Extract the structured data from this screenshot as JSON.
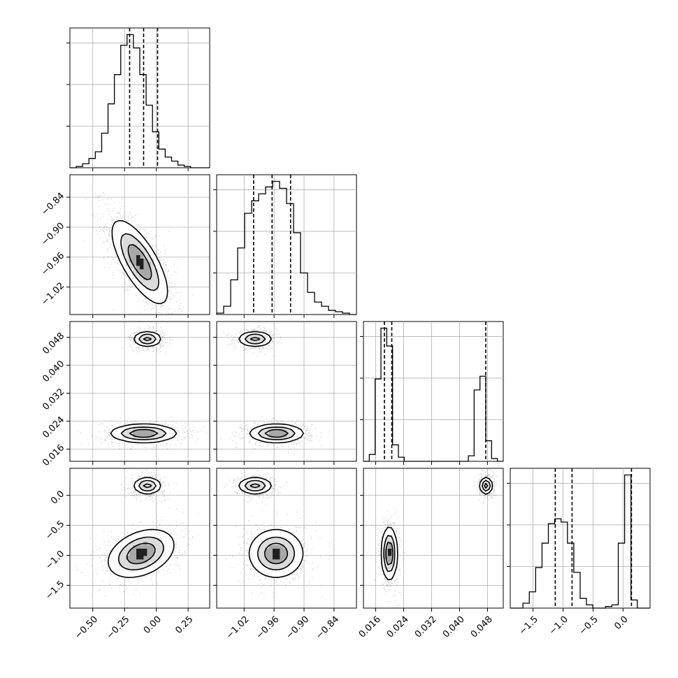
{
  "chart_data": {
    "type": "corner",
    "title": "",
    "grid": true,
    "variables": [
      {
        "range": [
          -0.68,
          0.42
        ],
        "ticks": [
          -0.5,
          -0.25,
          0.0,
          0.25
        ],
        "tick_labels": [
          "−0.50",
          "−0.25",
          "0.00",
          "0.25"
        ],
        "quantiles": [
          -0.21,
          -0.1,
          0.01
        ]
      },
      {
        "range": [
          -1.075,
          -0.795
        ],
        "ticks": [
          -1.02,
          -0.96,
          -0.9,
          -0.84
        ],
        "tick_labels": [
          "−1.02",
          "−0.96",
          "−0.90",
          "−0.84"
        ],
        "quantiles": [
          -1.001,
          -0.964,
          -0.927
        ]
      },
      {
        "range": [
          0.0125,
          0.0525
        ],
        "ticks": [
          0.016,
          0.024,
          0.032,
          0.04,
          0.048
        ],
        "tick_labels": [
          "0.016",
          "0.024",
          "0.032",
          "0.040",
          "0.048"
        ],
        "quantiles": [
          0.0185,
          0.0206,
          0.0475
        ]
      },
      {
        "range": [
          -1.88,
          0.45
        ],
        "ticks": [
          -1.5,
          -1.0,
          -0.5,
          0.0
        ],
        "tick_labels": [
          "−1.5",
          "−1.0",
          "−0.5",
          "0.0"
        ],
        "quantiles": [
          -1.13,
          -0.85,
          0.14
        ]
      }
    ],
    "diagonal_histograms": [
      {
        "bins": [
          -0.68,
          0.42
        ],
        "counts": [
          0,
          1,
          3,
          7,
          12,
          26,
          48,
          70,
          92,
          100,
          90,
          70,
          47,
          27,
          14,
          8,
          5,
          2,
          1,
          0,
          0,
          0
        ]
      },
      {
        "bins": [
          -1.075,
          -0.795
        ],
        "counts": [
          1,
          6,
          25,
          48,
          73,
          82,
          87,
          92,
          96,
          91,
          80,
          59,
          30,
          16,
          9,
          6,
          3,
          2,
          1,
          0
        ]
      },
      {
        "bins": [
          0.0125,
          0.0525
        ],
        "counts": [
          0,
          5,
          60,
          97,
          84,
          12,
          3,
          0,
          0,
          0,
          0,
          0,
          0,
          0,
          0,
          0,
          0,
          0,
          4,
          52,
          62,
          15,
          2,
          0
        ]
      },
      {
        "bins": [
          -1.88,
          0.45
        ],
        "counts": [
          0,
          0,
          3,
          10,
          25,
          40,
          52,
          55,
          53,
          40,
          22,
          6,
          2,
          0,
          0,
          1,
          2,
          40,
          82,
          5,
          0,
          0
        ]
      }
    ],
    "pair_densities": [
      {
        "x_var": 0,
        "y_var": 1,
        "clusters": [
          {
            "cx": -0.13,
            "cy": -0.97,
            "sx": 0.11,
            "sy": 0.042,
            "rho": -0.72,
            "weight": 1.0
          }
        ]
      },
      {
        "x_var": 0,
        "y_var": 2,
        "clusters": [
          {
            "cx": -0.07,
            "cy": 0.0475,
            "sx": 0.055,
            "sy": 0.0011,
            "rho": 0,
            "weight": 0.45
          },
          {
            "cx": -0.1,
            "cy": 0.0205,
            "sx": 0.13,
            "sy": 0.0013,
            "rho": 0,
            "weight": 0.55
          }
        ]
      },
      {
        "x_var": 1,
        "y_var": 2,
        "clusters": [
          {
            "cx": -0.998,
            "cy": 0.0475,
            "sx": 0.017,
            "sy": 0.0011,
            "rho": 0,
            "weight": 0.45
          },
          {
            "cx": -0.955,
            "cy": 0.0205,
            "sx": 0.027,
            "sy": 0.0013,
            "rho": 0,
            "weight": 0.55
          }
        ]
      },
      {
        "x_var": 0,
        "y_var": 3,
        "clusters": [
          {
            "cx": -0.07,
            "cy": 0.16,
            "sx": 0.055,
            "sy": 0.07,
            "rho": 0,
            "weight": 0.45
          },
          {
            "cx": -0.12,
            "cy": -0.97,
            "sx": 0.13,
            "sy": 0.2,
            "rho": 0.35,
            "weight": 0.55
          }
        ]
      },
      {
        "x_var": 1,
        "y_var": 3,
        "clusters": [
          {
            "cx": -0.998,
            "cy": 0.16,
            "sx": 0.017,
            "sy": 0.07,
            "rho": 0,
            "weight": 0.45
          },
          {
            "cx": -0.956,
            "cy": -0.97,
            "sx": 0.027,
            "sy": 0.2,
            "rho": 0,
            "weight": 0.55
          }
        ]
      },
      {
        "x_var": 2,
        "y_var": 3,
        "clusters": [
          {
            "cx": 0.0476,
            "cy": 0.16,
            "sx": 0.0009,
            "sy": 0.07,
            "rho": 0,
            "weight": 0.45
          },
          {
            "cx": 0.0199,
            "cy": -0.97,
            "sx": 0.0011,
            "sy": 0.22,
            "rho": 0,
            "weight": 0.55
          }
        ]
      }
    ]
  }
}
